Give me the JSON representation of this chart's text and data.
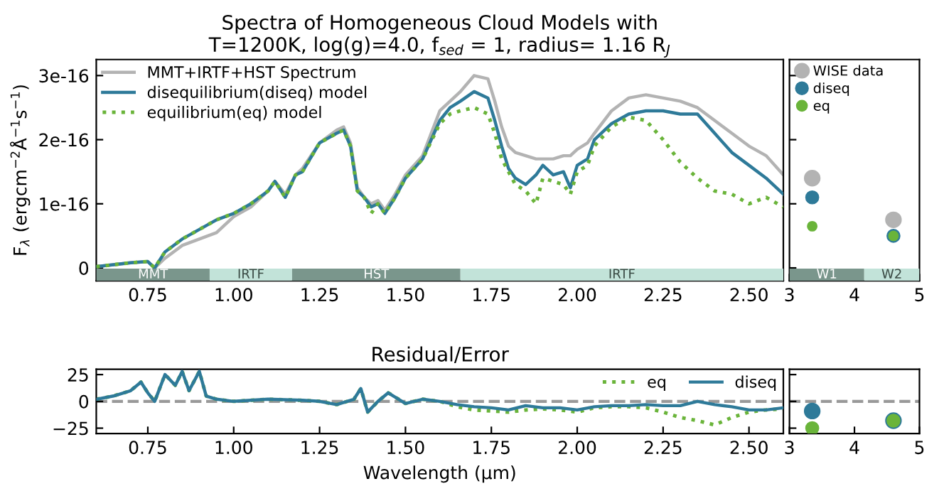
{
  "chart_data": [
    {
      "type": "line",
      "title": "Spectra of Homogeneous Cloud Models with\nT=1200K, log(g)=4.0, f$_{sed}$ = 1, radius= 1.16 R$_{J}$",
      "ylabel": "F$_{λ}$ (ergcm$^{−2}$Å$^{−1}$s$^{−1}$)",
      "x": [
        0.6,
        0.65,
        0.7,
        0.75,
        0.77,
        0.8,
        0.85,
        0.9,
        0.95,
        1.0,
        1.05,
        1.1,
        1.12,
        1.15,
        1.18,
        1.2,
        1.25,
        1.3,
        1.32,
        1.34,
        1.36,
        1.38,
        1.4,
        1.42,
        1.44,
        1.47,
        1.5,
        1.55,
        1.6,
        1.63,
        1.66,
        1.7,
        1.74,
        1.76,
        1.78,
        1.8,
        1.82,
        1.85,
        1.88,
        1.9,
        1.93,
        1.96,
        1.98,
        2.0,
        2.03,
        2.05,
        2.1,
        2.15,
        2.2,
        2.25,
        2.3,
        2.35,
        2.4,
        2.45,
        2.5,
        2.55,
        2.6
      ],
      "series": [
        {
          "name": "MMT+IRTF+HST Spectrum",
          "color": "#b3b3b3",
          "line_style": "solid",
          "values": [
            2e-18,
            5e-18,
            8e-18,
            1e-17,
            0.0,
            1.5e-17,
            3.5e-17,
            4.5e-17,
            5.5e-17,
            8e-17,
            9.5e-17,
            1.2e-16,
            1.35e-16,
            1.15e-16,
            1.45e-16,
            1.55e-16,
            1.95e-16,
            2.15e-16,
            2.2e-16,
            1.95e-16,
            1.25e-16,
            1.1e-16,
            1e-16,
            1.05e-16,
            9e-17,
            1.15e-16,
            1.45e-16,
            1.75e-16,
            2.45e-16,
            2.6e-16,
            2.75e-16,
            3e-16,
            2.95e-16,
            2.6e-16,
            2.2e-16,
            1.9e-16,
            1.8e-16,
            1.75e-16,
            1.7e-16,
            1.7e-16,
            1.7e-16,
            1.75e-16,
            1.75e-16,
            1.85e-16,
            1.95e-16,
            2.1e-16,
            2.45e-16,
            2.65e-16,
            2.7e-16,
            2.65e-16,
            2.6e-16,
            2.5e-16,
            2.3e-16,
            2.1e-16,
            1.9e-16,
            1.75e-16,
            1.45e-16
          ]
        },
        {
          "name": "disequilibrium(diseq) model",
          "color": "#2e7a99",
          "line_style": "solid",
          "values": [
            2e-18,
            5e-18,
            8e-18,
            1e-17,
            0.0,
            2.5e-17,
            4.5e-17,
            6e-17,
            7.5e-17,
            8.5e-17,
            1e-16,
            1.2e-16,
            1.35e-16,
            1.1e-16,
            1.45e-16,
            1.5e-16,
            1.95e-16,
            2.1e-16,
            2.15e-16,
            1.9e-16,
            1.2e-16,
            1.1e-16,
            9.5e-17,
            1e-16,
            8.5e-17,
            1.1e-16,
            1.4e-16,
            1.7e-16,
            2.3e-16,
            2.5e-16,
            2.6e-16,
            2.75e-16,
            2.65e-16,
            2.3e-16,
            1.9e-16,
            1.55e-16,
            1.4e-16,
            1.3e-16,
            1.45e-16,
            1.6e-16,
            1.45e-16,
            1.5e-16,
            1.25e-16,
            1.6e-16,
            1.7e-16,
            2e-16,
            2.25e-16,
            2.4e-16,
            2.45e-16,
            2.45e-16,
            2.4e-16,
            2.4e-16,
            2.1e-16,
            1.8e-16,
            1.6e-16,
            1.4e-16,
            1.15e-16
          ]
        },
        {
          "name": "equilibrium(eq) model",
          "color": "#6ab43a",
          "line_style": "dotted",
          "values": [
            2e-18,
            5e-18,
            8e-18,
            1e-17,
            0.0,
            2.5e-17,
            4.5e-17,
            6e-17,
            7.5e-17,
            8.5e-17,
            1e-16,
            1.2e-16,
            1.35e-16,
            1.1e-16,
            1.45e-16,
            1.5e-16,
            1.95e-16,
            2.1e-16,
            2.15e-16,
            1.9e-16,
            1.2e-16,
            1.1e-16,
            8.5e-17,
            1e-16,
            8.5e-17,
            1.1e-16,
            1.4e-16,
            1.7e-16,
            2.25e-16,
            2.4e-16,
            2.45e-16,
            2.5e-16,
            2.4e-16,
            2.1e-16,
            1.7e-16,
            1.5e-16,
            1.3e-16,
            1.2e-16,
            1e-16,
            1.4e-16,
            1.35e-16,
            1.3e-16,
            1.15e-16,
            1.5e-16,
            1.6e-16,
            1.9e-16,
            2.2e-16,
            2.35e-16,
            2.3e-16,
            2e-16,
            1.65e-16,
            1.4e-16,
            1.2e-16,
            1.15e-16,
            1e-16,
            1.1e-16,
            9.5e-17
          ]
        }
      ],
      "xlim": [
        0.6,
        2.6
      ],
      "xticks": [
        {
          "value": 0.75,
          "label": "0.75"
        },
        {
          "value": 1.0,
          "label": "1.00"
        },
        {
          "value": 1.25,
          "label": "1.25"
        },
        {
          "value": 1.5,
          "label": "1.50"
        },
        {
          "value": 1.75,
          "label": "1.75"
        },
        {
          "value": 2.0,
          "label": "2.00"
        },
        {
          "value": 2.25,
          "label": "2.25"
        },
        {
          "value": 2.5,
          "label": "2.50"
        }
      ],
      "ylim": [
        -2e-17,
        3.25e-16
      ],
      "yticks": [
        0,
        1e-16,
        2e-16,
        3e-16
      ],
      "bands": [
        {
          "axis": "x",
          "from": 0.6,
          "to": 0.93,
          "label": "MMT",
          "color": "#7a968c"
        },
        {
          "axis": "x",
          "from": 0.93,
          "to": 1.17,
          "label": "IRTF",
          "color": "#c2e3d9"
        },
        {
          "axis": "x",
          "from": 1.17,
          "to": 1.66,
          "label": "HST",
          "color": "#7a968c"
        },
        {
          "axis": "x",
          "from": 1.66,
          "to": 2.6,
          "label": "IRTF",
          "color": "#c2e3d9"
        }
      ],
      "legend": "top left",
      "grid": false
    },
    {
      "type": "scatter",
      "x": [
        3.35,
        4.6
      ],
      "series": [
        {
          "name": "WISE data",
          "color": "#b3b3b3",
          "values": [
            1.4e-16,
            7.5e-17
          ]
        },
        {
          "name": "diseq",
          "color": "#2e7a99",
          "values": [
            1.1e-16,
            5e-17
          ]
        },
        {
          "name": "eq",
          "color": "#6ab43a",
          "values": [
            6.5e-17,
            5e-17
          ]
        }
      ],
      "xlim": [
        3,
        5
      ],
      "xticks": [
        3,
        4,
        5
      ],
      "ylim": [
        -2e-17,
        3.25e-16
      ],
      "yticks": [
        0,
        1e-16,
        2e-16,
        3e-16
      ],
      "tick_labels": "x",
      "bands": [
        {
          "axis": "x",
          "from": 3,
          "to": 4.15,
          "label": "W1",
          "color": "#7a968c"
        },
        {
          "axis": "x",
          "from": 4.15,
          "to": 5,
          "label": "W2",
          "color": "#c2e3d9"
        }
      ],
      "legend": "top left",
      "marker": "circle",
      "grid": false
    },
    {
      "type": "line",
      "title": "Residual/Error",
      "xlabel": "Wavelength (μm)",
      "series": [
        {
          "name": "eq",
          "color": "#6ab43a",
          "line_style": "dotted",
          "x": [
            0.6,
            0.65,
            0.7,
            0.73,
            0.75,
            0.77,
            0.8,
            0.83,
            0.85,
            0.87,
            0.9,
            0.92,
            0.95,
            1.0,
            1.1,
            1.2,
            1.25,
            1.3,
            1.35,
            1.37,
            1.39,
            1.42,
            1.45,
            1.5,
            1.55,
            1.6,
            1.65,
            1.7,
            1.75,
            1.8,
            1.85,
            1.9,
            1.95,
            2.0,
            2.05,
            2.1,
            2.15,
            2.2,
            2.25,
            2.3,
            2.35,
            2.4,
            2.45,
            2.5,
            2.55,
            2.6
          ],
          "values": [
            2,
            5,
            10,
            18,
            8,
            0,
            25,
            15,
            28,
            10,
            28,
            5,
            2,
            0,
            2,
            1,
            0,
            -3,
            2,
            12,
            -10,
            0,
            8,
            -2,
            2,
            0,
            -5,
            -8,
            -9,
            -10,
            -8,
            -7,
            -8,
            -10,
            -6,
            -5,
            -5,
            -6,
            -10,
            -15,
            -18,
            -22,
            -15,
            -10,
            -8,
            -7
          ]
        },
        {
          "name": "diseq",
          "color": "#2e7a99",
          "line_style": "solid",
          "x": [
            0.6,
            0.65,
            0.7,
            0.73,
            0.75,
            0.77,
            0.8,
            0.83,
            0.85,
            0.87,
            0.9,
            0.92,
            0.95,
            1.0,
            1.1,
            1.2,
            1.25,
            1.3,
            1.35,
            1.37,
            1.39,
            1.42,
            1.45,
            1.5,
            1.55,
            1.6,
            1.65,
            1.7,
            1.75,
            1.8,
            1.85,
            1.9,
            1.95,
            2.0,
            2.05,
            2.1,
            2.15,
            2.2,
            2.25,
            2.3,
            2.35,
            2.4,
            2.45,
            2.5,
            2.55,
            2.6
          ],
          "values": [
            2,
            5,
            10,
            18,
            8,
            0,
            25,
            15,
            28,
            10,
            28,
            5,
            2,
            0,
            2,
            1,
            0,
            -3,
            2,
            12,
            -10,
            0,
            8,
            -2,
            2,
            0,
            -3,
            -5,
            -6,
            -8,
            -4,
            -6,
            -6,
            -8,
            -5,
            -4,
            -4,
            -3,
            -4,
            -4,
            0,
            -3,
            -5,
            -8,
            -8,
            -6
          ]
        }
      ],
      "xlim": [
        0.6,
        2.6
      ],
      "xticks": [
        {
          "value": 0.75,
          "label": "0.75"
        },
        {
          "value": 1.0,
          "label": "1.00"
        },
        {
          "value": 1.25,
          "label": "1.25"
        },
        {
          "value": 1.5,
          "label": "1.50"
        },
        {
          "value": 1.75,
          "label": "1.75"
        },
        {
          "value": 2.0,
          "label": "2.00"
        },
        {
          "value": 2.25,
          "label": "2.25"
        },
        {
          "value": 2.5,
          "label": "2.50"
        }
      ],
      "ylim": [
        -30,
        30
      ],
      "yticks": [
        {
          "value": -25,
          "label": "−25"
        },
        0,
        25
      ],
      "ref_lines": [
        {
          "axis": "y",
          "value": 0,
          "color": "#999999",
          "line_style": "dashed"
        }
      ],
      "legend": "top right",
      "grid": false
    },
    {
      "type": "scatter",
      "x": [
        3.35,
        4.6
      ],
      "series": [
        {
          "color": "#2e7a99",
          "values": [
            -9,
            -18
          ]
        },
        {
          "color": "#6ab43a",
          "values": [
            -25,
            -18
          ]
        }
      ],
      "xlim": [
        3,
        5
      ],
      "xticks": [
        3,
        4,
        5
      ],
      "ylim": [
        -30,
        30
      ],
      "yticks": [
        -25,
        0,
        25
      ],
      "tick_labels": "x",
      "ref_lines": [
        {
          "axis": "y",
          "value": 0,
          "color": "#999999",
          "line_style": "dashed"
        }
      ],
      "marker": "circle",
      "grid": false
    }
  ]
}
